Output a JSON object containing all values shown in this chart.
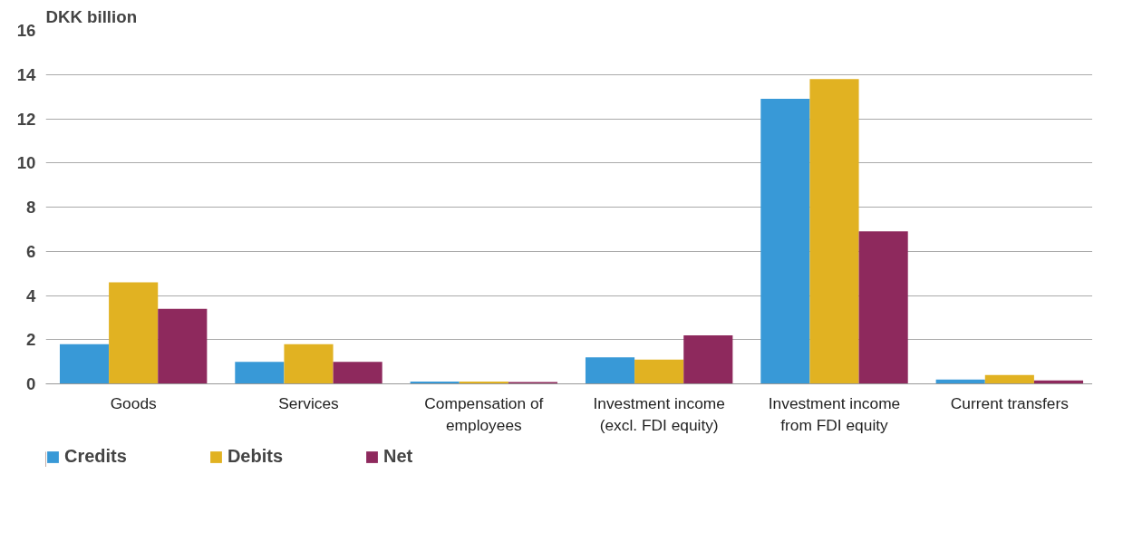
{
  "chart_data": {
    "type": "bar",
    "ylabel": "DKK billion",
    "categories": [
      "Goods",
      "Services",
      "Compensation of employees",
      "Investment income (excl. FDI equity)",
      "Investment income from FDI equity",
      "Current transfers"
    ],
    "series": [
      {
        "name": "Credits",
        "color": "#3899d7",
        "values": [
          1.8,
          1.0,
          0.1,
          1.2,
          12.9,
          0.2
        ]
      },
      {
        "name": "Debits",
        "color": "#e1b222",
        "values": [
          4.6,
          1.8,
          0.1,
          1.1,
          13.8,
          0.4
        ]
      },
      {
        "name": "Net",
        "color": "#8e295d",
        "values": [
          3.4,
          1.0,
          0.08,
          2.2,
          6.9,
          0.15
        ]
      }
    ],
    "ylim": [
      0,
      16
    ],
    "yticks": [
      0,
      2,
      4,
      6,
      8,
      10,
      12,
      14,
      16
    ],
    "grid": "y",
    "legend": "bottom"
  }
}
